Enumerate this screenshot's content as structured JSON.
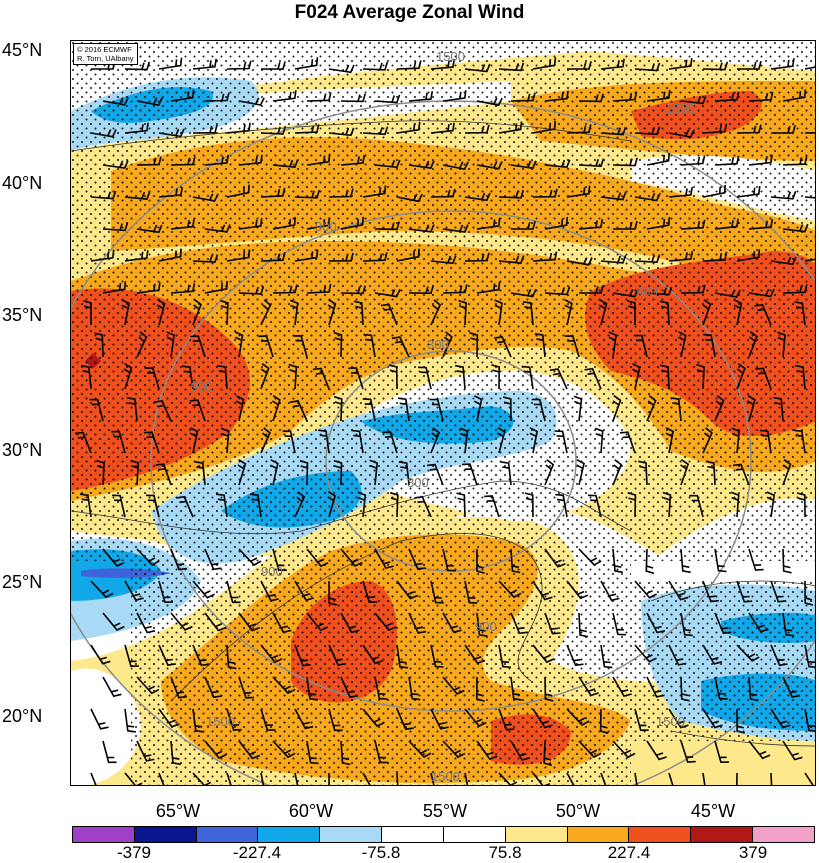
{
  "title": "F024 Average Zonal Wind",
  "credit": [
    "© 2016 ECMWF",
    "R. Torn, UAlbany"
  ],
  "lat_labels": [
    "45°N",
    "40°N",
    "35°N",
    "30°N",
    "25°N",
    "20°N"
  ],
  "lon_labels": [
    "65°W",
    "60°W",
    "55°W",
    "50°W",
    "45°W"
  ],
  "contour_labels": [
    "1500",
    "1500",
    "300",
    "300",
    "900",
    "900",
    "900",
    "900",
    "900",
    "1500",
    "1500",
    "1500"
  ],
  "colorbar": {
    "colors": [
      "#a040c8",
      "#0a1690",
      "#3f63d8",
      "#10a8e8",
      "#a8daf6",
      "#ffffff",
      "#ffffff",
      "#fde88c",
      "#f8a81c",
      "#f0501e",
      "#b01818",
      "#f2a0c8"
    ],
    "labels": [
      "-379",
      "-227.4",
      "-75.8",
      "75.8",
      "227.4",
      "379"
    ]
  },
  "colors": {
    "red": "#f0501e",
    "orange": "#f8a81c",
    "yellow": "#fde88c",
    "lightblue": "#a8daf6",
    "blue": "#10a8e8"
  }
}
